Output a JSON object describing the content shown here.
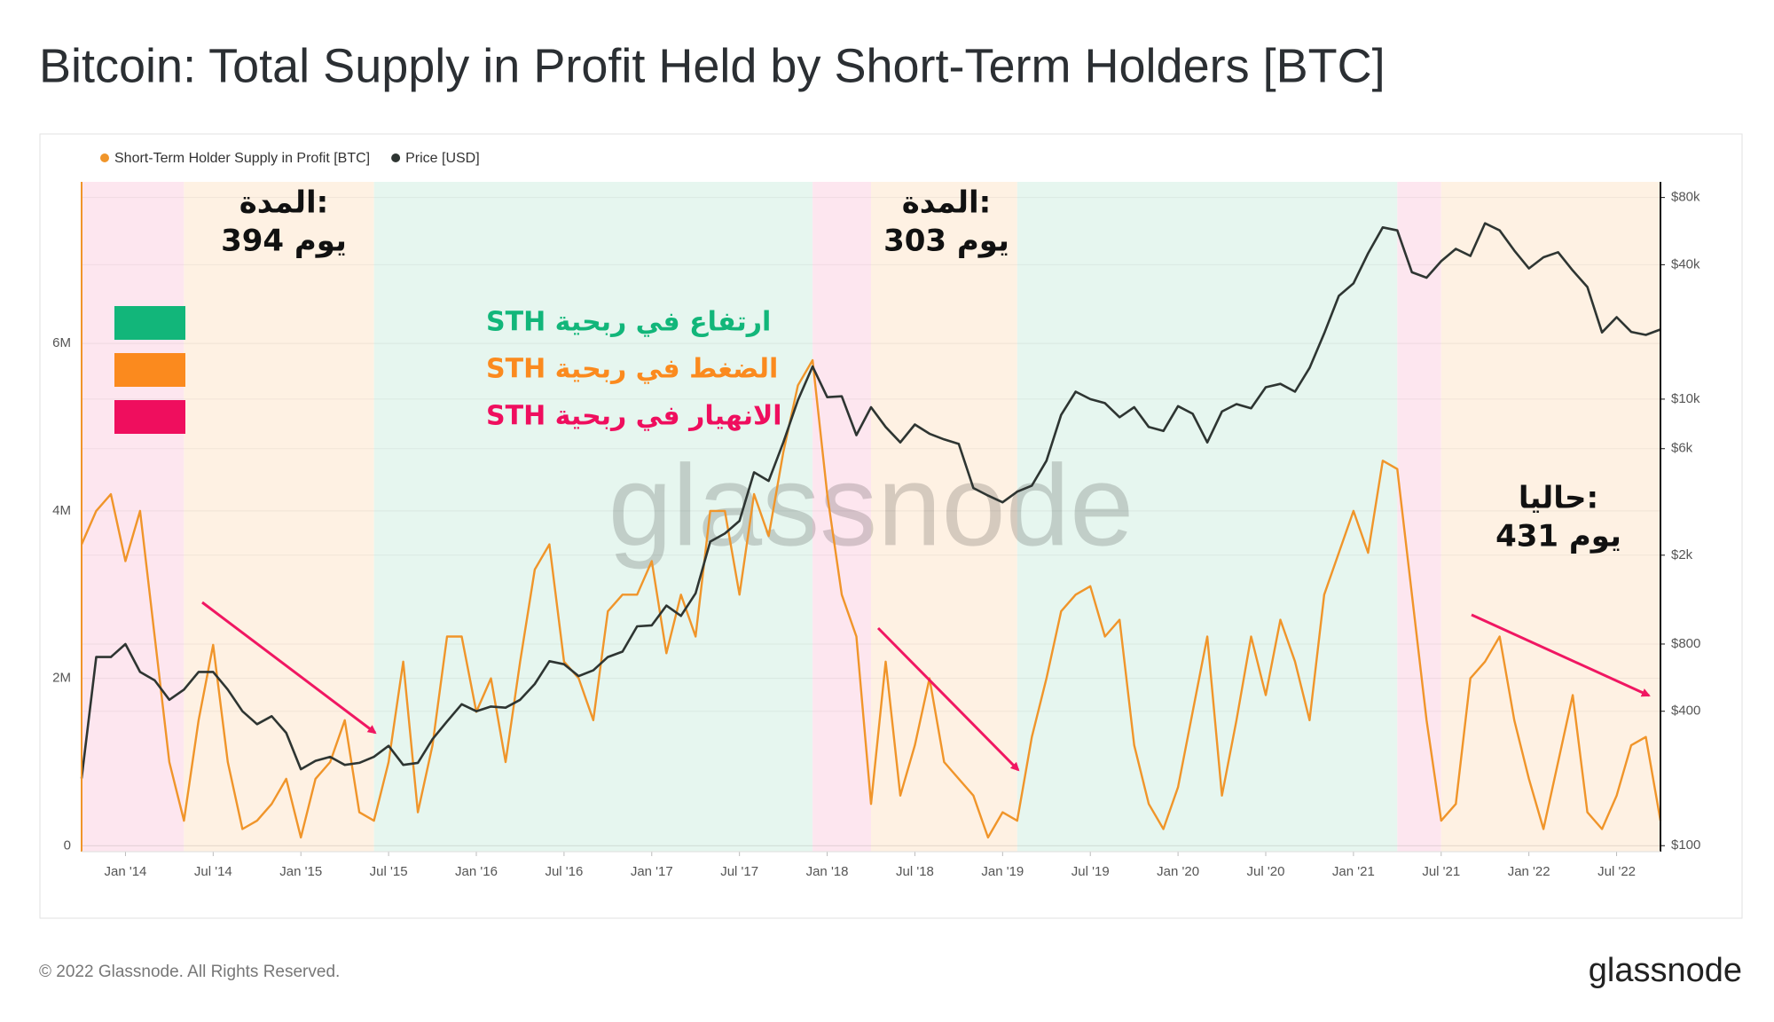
{
  "chart_data": {
    "type": "line",
    "title": "Bitcoin: Total Supply in Profit Held by Short-Term Holders [BTC]",
    "watermark": "glassnode",
    "x": [
      "2013-10",
      "2013-11",
      "2013-12",
      "2014-01",
      "2014-02",
      "2014-03",
      "2014-04",
      "2014-05",
      "2014-06",
      "2014-07",
      "2014-08",
      "2014-09",
      "2014-10",
      "2014-11",
      "2014-12",
      "2015-01",
      "2015-02",
      "2015-03",
      "2015-04",
      "2015-05",
      "2015-06",
      "2015-07",
      "2015-08",
      "2015-09",
      "2015-10",
      "2015-11",
      "2015-12",
      "2016-01",
      "2016-02",
      "2016-03",
      "2016-04",
      "2016-05",
      "2016-06",
      "2016-07",
      "2016-08",
      "2016-09",
      "2016-10",
      "2016-11",
      "2016-12",
      "2017-01",
      "2017-02",
      "2017-03",
      "2017-04",
      "2017-05",
      "2017-06",
      "2017-07",
      "2017-08",
      "2017-09",
      "2017-10",
      "2017-11",
      "2017-12",
      "2018-01",
      "2018-02",
      "2018-03",
      "2018-04",
      "2018-05",
      "2018-06",
      "2018-07",
      "2018-08",
      "2018-09",
      "2018-10",
      "2018-11",
      "2018-12",
      "2019-01",
      "2019-02",
      "2019-03",
      "2019-04",
      "2019-05",
      "2019-06",
      "2019-07",
      "2019-08",
      "2019-09",
      "2019-10",
      "2019-11",
      "2019-12",
      "2020-01",
      "2020-02",
      "2020-03",
      "2020-04",
      "2020-05",
      "2020-06",
      "2020-07",
      "2020-08",
      "2020-09",
      "2020-10",
      "2020-11",
      "2020-12",
      "2021-01",
      "2021-02",
      "2021-03",
      "2021-04",
      "2021-05",
      "2021-06",
      "2021-07",
      "2021-08",
      "2021-09",
      "2021-10",
      "2021-11",
      "2021-12",
      "2022-01",
      "2022-02",
      "2022-03",
      "2022-04",
      "2022-05",
      "2022-06",
      "2022-07",
      "2022-08",
      "2022-09",
      "2022-10"
    ],
    "series": [
      {
        "name": "Short-Term Holder Supply in Profit [BTC]",
        "color": "#f0952a",
        "axis": "y",
        "values": [
          3600000,
          4000000,
          4200000,
          3400000,
          4000000,
          2500000,
          1000000,
          300000,
          1500000,
          2400000,
          1000000,
          200000,
          300000,
          500000,
          800000,
          100000,
          800000,
          1000000,
          1500000,
          400000,
          300000,
          1000000,
          2200000,
          400000,
          1200000,
          2500000,
          2500000,
          1600000,
          2000000,
          1000000,
          2200000,
          3300000,
          3600000,
          2200000,
          2000000,
          1500000,
          2800000,
          3000000,
          3000000,
          3400000,
          2300000,
          3000000,
          2500000,
          4000000,
          4000000,
          3000000,
          4200000,
          3700000,
          4700000,
          5500000,
          5800000,
          4200000,
          3000000,
          2500000,
          500000,
          2200000,
          600000,
          1200000,
          2000000,
          1000000,
          800000,
          600000,
          100000,
          400000,
          300000,
          1300000,
          2000000,
          2800000,
          3000000,
          3100000,
          2500000,
          2700000,
          1200000,
          500000,
          200000,
          700000,
          1600000,
          2500000,
          600000,
          1500000,
          2500000,
          1800000,
          2700000,
          2200000,
          1500000,
          3000000,
          3500000,
          4000000,
          3500000,
          4600000,
          4500000,
          3000000,
          1500000,
          300000,
          500000,
          2000000,
          2200000,
          2500000,
          1500000,
          800000,
          200000,
          1000000,
          1800000,
          400000,
          200000,
          600000,
          1200000,
          1300000,
          300000
        ]
      },
      {
        "name": "Price [USD]",
        "color": "#2e3532",
        "axis": "y2",
        "values": [
          200,
          700,
          700,
          800,
          600,
          550,
          450,
          500,
          600,
          600,
          500,
          400,
          350,
          380,
          320,
          220,
          240,
          250,
          230,
          235,
          250,
          280,
          230,
          235,
          300,
          360,
          430,
          400,
          420,
          415,
          450,
          530,
          670,
          650,
          575,
          610,
          700,
          740,
          960,
          970,
          1190,
          1070,
          1350,
          2300,
          2500,
          2850,
          4700,
          4300,
          6400,
          9900,
          14000,
          10200,
          10300,
          6900,
          9200,
          7500,
          6400,
          7700,
          7000,
          6600,
          6300,
          4000,
          3700,
          3450,
          3850,
          4100,
          5300,
          8500,
          10800,
          10000,
          9600,
          8300,
          9200,
          7500,
          7200,
          9300,
          8600,
          6400,
          8800,
          9500,
          9100,
          11300,
          11700,
          10800,
          13800,
          19700,
          29000,
          33000,
          45000,
          58800,
          57000,
          37000,
          35000,
          41500,
          47100,
          43800,
          61300,
          57000,
          46300,
          38500,
          43200,
          45500,
          37700,
          31800,
          19900,
          23300,
          20000,
          19400,
          20500
        ]
      }
    ],
    "xlim": [
      "2013-10",
      "2022-10"
    ],
    "xticks": [
      {
        "value": "2014-01",
        "label": "Jan '14"
      },
      {
        "value": "2014-07",
        "label": "Jul '14"
      },
      {
        "value": "2015-01",
        "label": "Jan '15"
      },
      {
        "value": "2015-07",
        "label": "Jul '15"
      },
      {
        "value": "2016-01",
        "label": "Jan '16"
      },
      {
        "value": "2016-07",
        "label": "Jul '16"
      },
      {
        "value": "2017-01",
        "label": "Jan '17"
      },
      {
        "value": "2017-07",
        "label": "Jul '17"
      },
      {
        "value": "2018-01",
        "label": "Jan '18"
      },
      {
        "value": "2018-07",
        "label": "Jul '18"
      },
      {
        "value": "2019-01",
        "label": "Jan '19"
      },
      {
        "value": "2019-07",
        "label": "Jul '19"
      },
      {
        "value": "2020-01",
        "label": "Jan '20"
      },
      {
        "value": "2020-07",
        "label": "Jul '20"
      },
      {
        "value": "2021-01",
        "label": "Jan '21"
      },
      {
        "value": "2021-07",
        "label": "Jul '21"
      },
      {
        "value": "2022-01",
        "label": "Jan '22"
      },
      {
        "value": "2022-07",
        "label": "Jul '22"
      }
    ],
    "ylim": [
      -70000,
      7930000
    ],
    "yticks": [
      0,
      {
        "value": 2000000,
        "label": "2M"
      },
      {
        "value": 4000000,
        "label": "4M"
      },
      {
        "value": 6000000,
        "label": "6M"
      }
    ],
    "y2lim": [
      94,
      94000
    ],
    "y2log": true,
    "y2ticks": [
      {
        "value": 100,
        "label": "$100"
      },
      {
        "value": 400,
        "label": "$400"
      },
      {
        "value": 800,
        "label": "$800"
      },
      {
        "value": 2000,
        "label": "$2k"
      },
      {
        "value": 6000,
        "label": "$6k"
      },
      {
        "value": 10000,
        "label": "$10k"
      },
      {
        "value": 40000,
        "label": "$40k"
      },
      {
        "value": 80000,
        "label": "$80k"
      }
    ],
    "grid": true,
    "legend": "top-left",
    "phases": [
      {
        "name": "ارتفاع في ربحية STH",
        "color": "#12b67a",
        "fill": "#e6f6ef"
      },
      {
        "name": "الضغط في ربحية STH",
        "color": "#fb8a1e",
        "fill": "#fef1e3"
      },
      {
        "name": "الانهيار في ربحية STH",
        "color": "#ef0e5e",
        "fill": "#fde6ef"
      }
    ],
    "regions": [
      {
        "start": "2013-10",
        "end": "2014-05",
        "phase": 2
      },
      {
        "start": "2014-05",
        "end": "2015-06",
        "phase": 1
      },
      {
        "start": "2015-06",
        "end": "2017-12",
        "phase": 0
      },
      {
        "start": "2017-12",
        "end": "2018-04",
        "phase": 2
      },
      {
        "start": "2018-04",
        "end": "2019-02",
        "phase": 1
      },
      {
        "start": "2019-02",
        "end": "2021-04",
        "phase": 0
      },
      {
        "start": "2021-04",
        "end": "2021-07",
        "phase": 2
      },
      {
        "start": "2021-07",
        "end": "2022-10",
        "phase": 1
      }
    ],
    "annotations": [
      {
        "label": "المدة:",
        "text": "394 يوم"
      },
      {
        "label": "المدة:",
        "text": "303 يوم"
      },
      {
        "label": "حاليا:",
        "text": "431 يوم"
      }
    ],
    "footer": "© 2022 Glassnode. All Rights Reserved.",
    "logo": "glassnode"
  }
}
